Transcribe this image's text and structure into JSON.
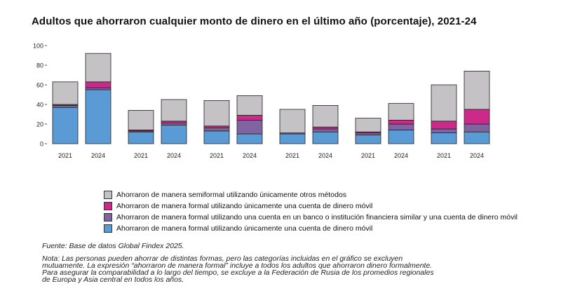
{
  "title": "Adultos que ahorraron cualquier monto de dinero en el último año (porcentaje), 2021-24",
  "chart_data": {
    "type": "bar",
    "stacked": true,
    "ylim": [
      0,
      100
    ],
    "yticks": [
      0,
      20,
      40,
      60,
      80,
      100
    ],
    "groups": 6,
    "x": [
      "2021",
      "2024",
      "2021",
      "2024",
      "2021",
      "2024",
      "2021",
      "2024",
      "2021",
      "2024",
      "2021",
      "2024"
    ],
    "series": [
      {
        "name": "Ahorraron de manera formal utilizando únicamente una cuenta de dinero móvil",
        "key": "mm_only",
        "color": "#5b9bd5",
        "values": [
          37,
          55,
          12,
          19,
          13,
          10,
          10,
          12,
          9,
          14,
          11,
          12
        ]
      },
      {
        "name": "Ahorraron de manera formal utilizando una cuenta en un banco o institución financiera similar y una cuenta de dinero móvil",
        "key": "bank_and_mm",
        "color": "#8064a2",
        "values": [
          2,
          2,
          1,
          2,
          3,
          14,
          1,
          3,
          2,
          6,
          4,
          8
        ]
      },
      {
        "name": "Ahorraron de manera formal utilizando únicamente una cuenta de dinero móvil",
        "key": "formal_other",
        "color": "#cc2a8a",
        "values": [
          1,
          6,
          1,
          2,
          2,
          5,
          0,
          2,
          1,
          4,
          8,
          15
        ]
      },
      {
        "name": "Ahorraron de manera semiformal utilizando únicamente otros métodos",
        "key": "semiformal",
        "color": "#c4c2c4",
        "values": [
          23,
          29,
          20,
          22,
          26,
          20,
          24,
          22,
          14,
          17,
          37,
          39
        ]
      }
    ],
    "legend_order": [
      "semiformal",
      "formal_other",
      "bank_and_mm",
      "mm_only"
    ],
    "grid": false,
    "legend_position": "bottom"
  },
  "source": "Fuente: Base de datos Global Findex 2025.",
  "note_lines": [
    "Nota: Las personas pueden ahorrar de distintas formas, pero las categorías incluidas en el gráfico se excluyen",
    "mutuamente. La expresión “ahorraron de manera formal” incluye a todos los adultos que ahorraron dinero formalmente.",
    "Para asegurar la comparabilidad a lo largo del tiempo, se excluye a la Federación de Rusia de los promedios regionales",
    "de Europa y Asia central en todos los años."
  ]
}
